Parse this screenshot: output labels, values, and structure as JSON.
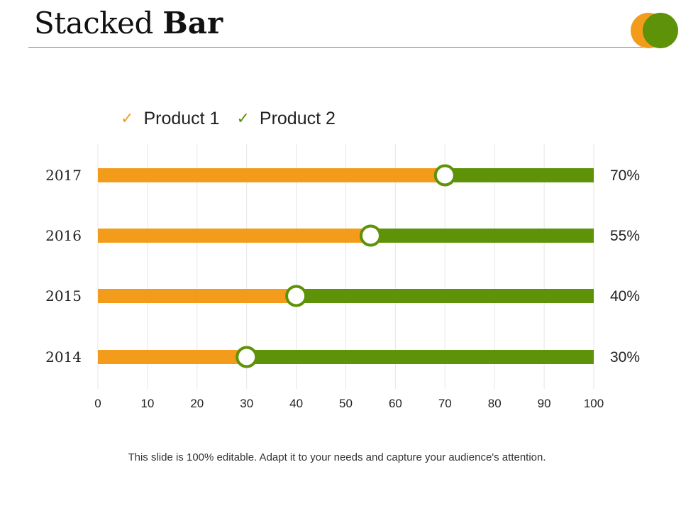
{
  "slide": {
    "title_light": "Stacked",
    "title_bold": "Bar",
    "footer": "This slide is 100% editable. Adapt it to your needs and capture your audience's attention."
  },
  "colors": {
    "product1": "#f39c1c",
    "product2": "#5e9208",
    "grid": "#e6e6e6",
    "marker_fill": "#ffffff"
  },
  "chart_data": {
    "type": "bar",
    "orientation": "horizontal",
    "stacked": true,
    "title": "Stacked Bar",
    "categories": [
      "2017",
      "2016",
      "2015",
      "2014"
    ],
    "series": [
      {
        "name": "Product 1",
        "values": [
          70,
          55,
          40,
          30
        ],
        "legend_icon": "check-icon"
      },
      {
        "name": "Product 2",
        "values": [
          30,
          45,
          60,
          70
        ],
        "legend_icon": "check-icon"
      }
    ],
    "data_labels": [
      "70%",
      "55%",
      "40%",
      "30%"
    ],
    "xlim": [
      0,
      100
    ],
    "xticks": [
      0,
      10,
      20,
      30,
      40,
      50,
      60,
      70,
      80,
      90,
      100
    ],
    "grid": true,
    "legend_position": "top"
  }
}
